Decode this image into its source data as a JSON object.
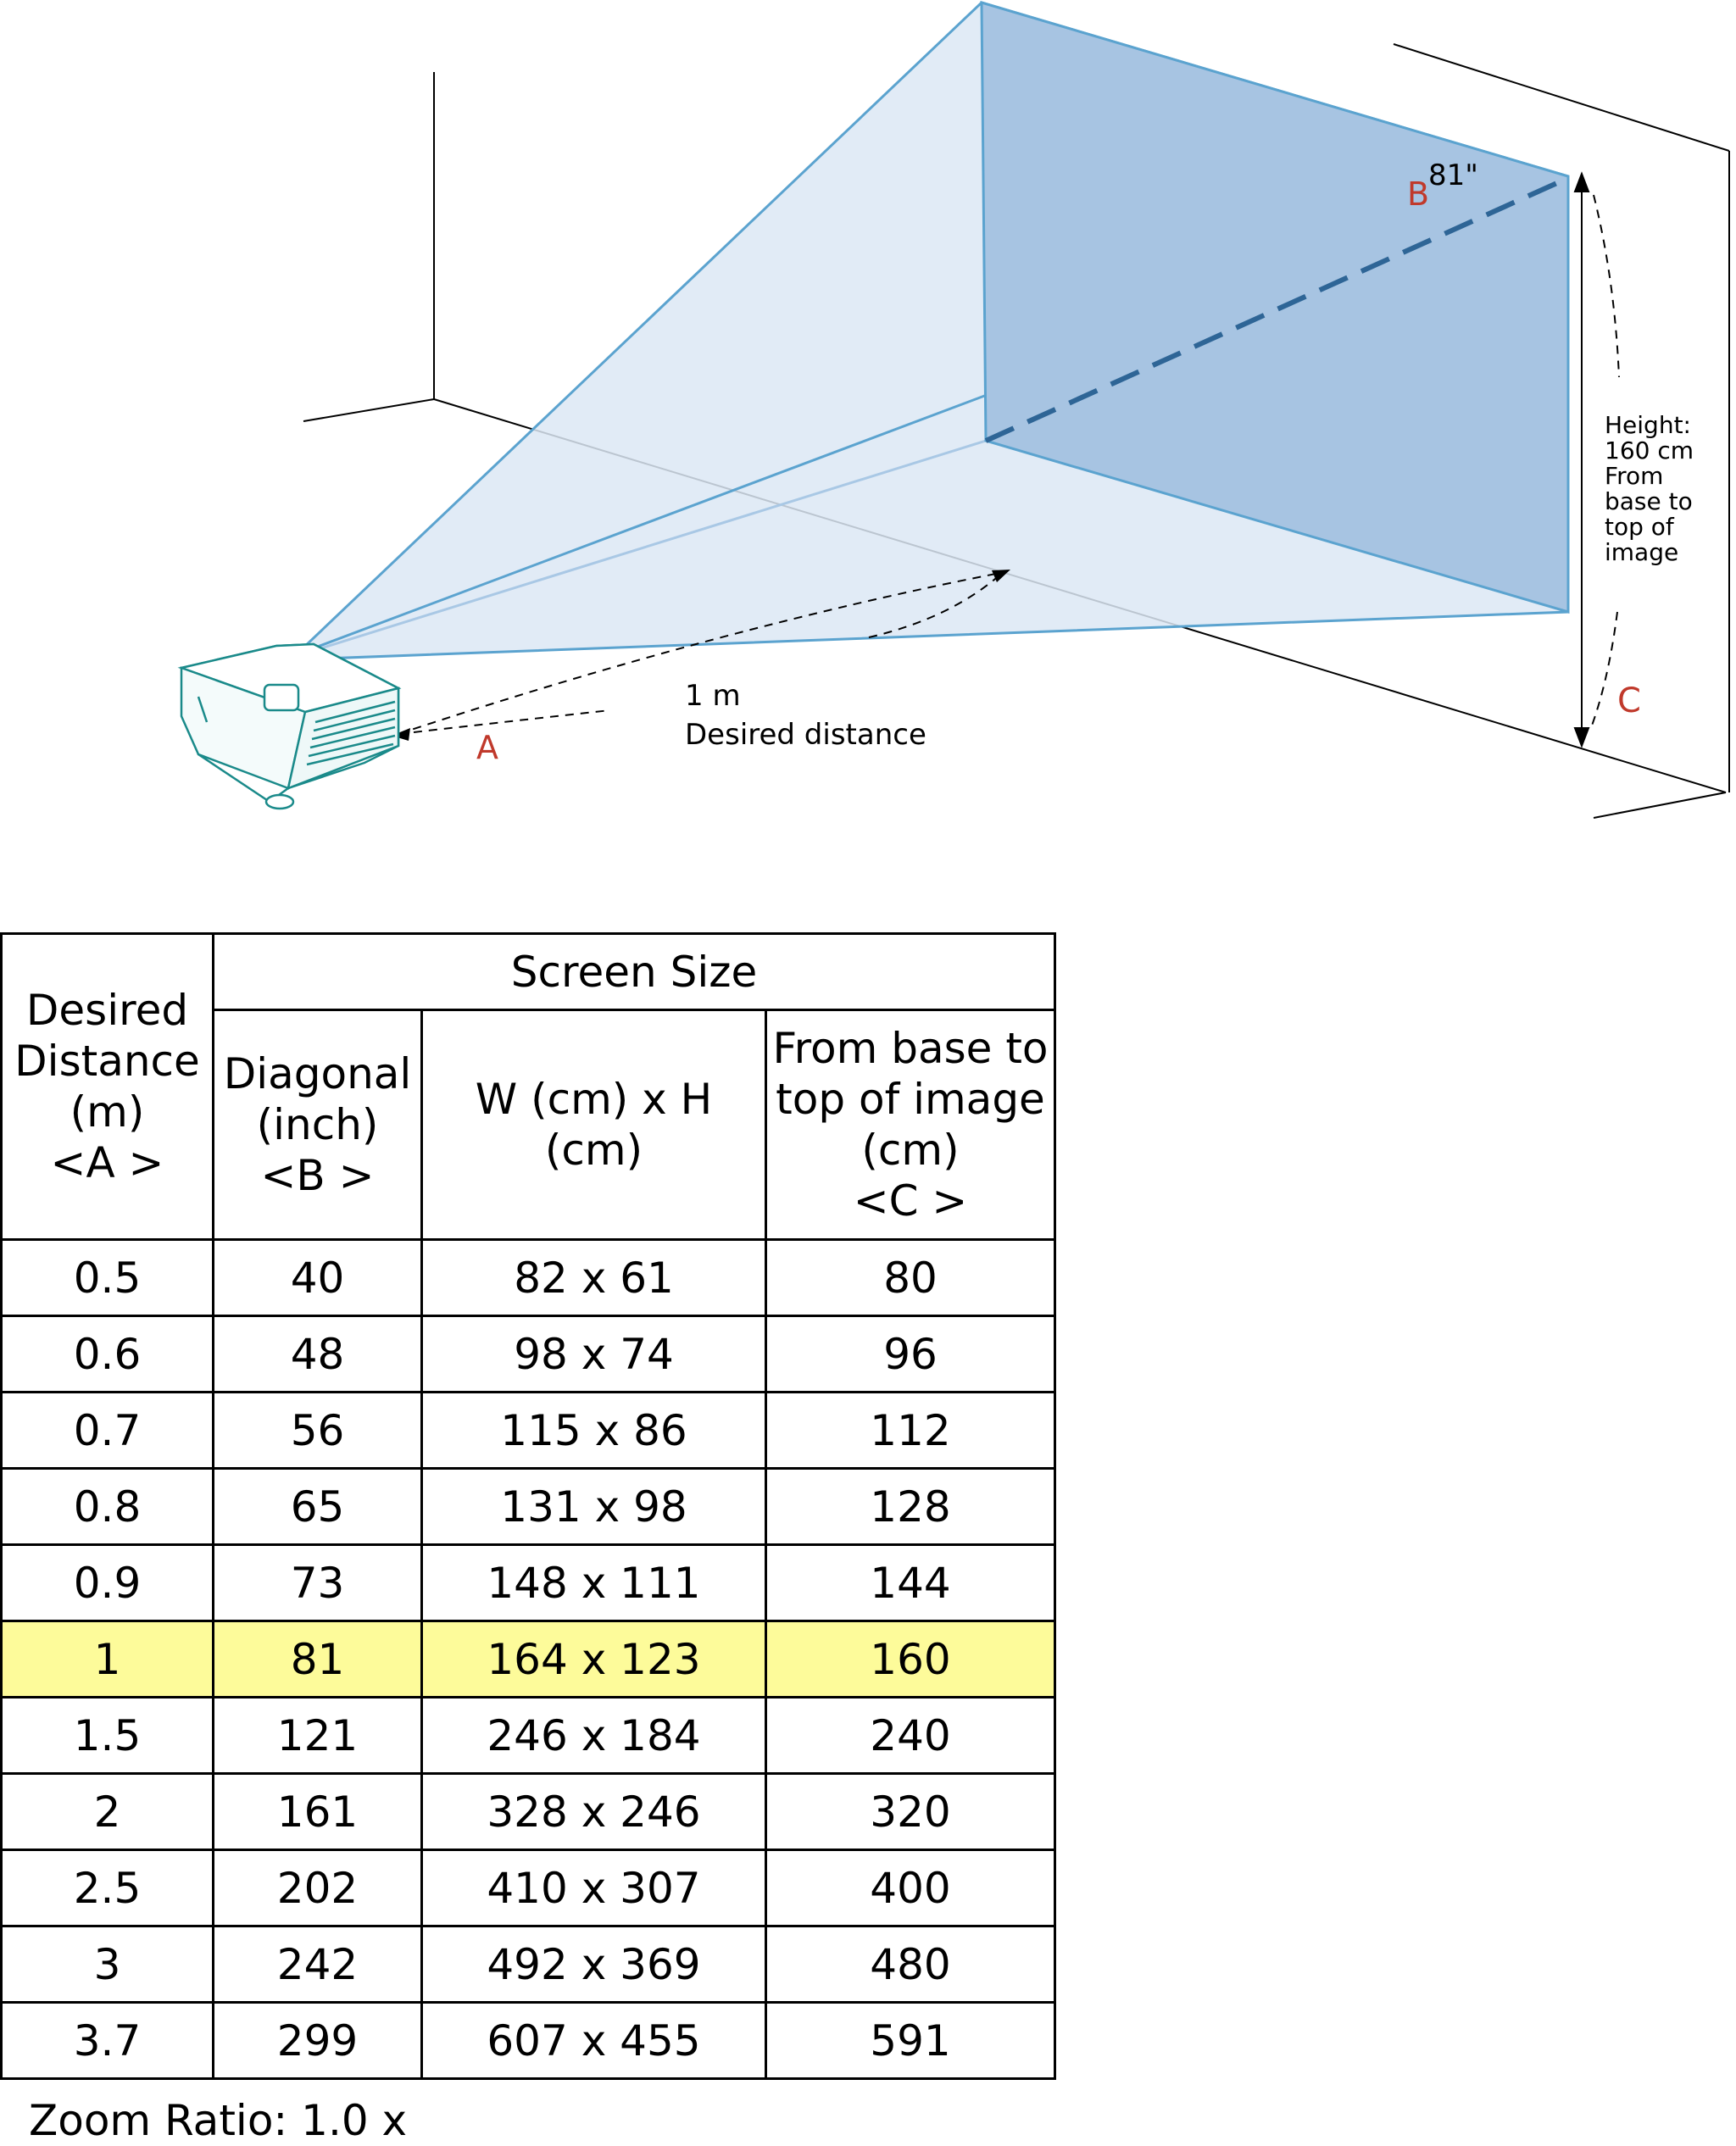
{
  "diagram": {
    "label_diagonal_value": "81\"",
    "label_b": "B",
    "label_a": "A",
    "label_c": "C",
    "distance_value": "1 m",
    "distance_caption": "Desired distance",
    "height_note": [
      "Height:",
      "160 cm",
      "From",
      "base to",
      "top of",
      "image"
    ],
    "accent_color": "#5ba3cf",
    "label_color": "#c0392b"
  },
  "table": {
    "header_a": [
      "Desired",
      "Distance",
      "(m)",
      "<A >"
    ],
    "header_screen_size": "Screen Size",
    "header_b": [
      "Diagonal",
      "(inch)",
      "<B >"
    ],
    "header_wh": "W (cm) x H (cm)",
    "header_c": [
      "From base to",
      "top of image",
      "(cm)",
      "<C >"
    ],
    "rows": [
      {
        "a": "0.5",
        "b": "40",
        "wh": "82 x 61",
        "c": "80"
      },
      {
        "a": "0.6",
        "b": "48",
        "wh": "98 x 74",
        "c": "96"
      },
      {
        "a": "0.7",
        "b": "56",
        "wh": "115 x 86",
        "c": "112"
      },
      {
        "a": "0.8",
        "b": "65",
        "wh": "131 x 98",
        "c": "128"
      },
      {
        "a": "0.9",
        "b": "73",
        "wh": "148 x 111",
        "c": "144"
      },
      {
        "a": "1",
        "b": "81",
        "wh": "164 x 123",
        "c": "160"
      },
      {
        "a": "1.5",
        "b": "121",
        "wh": "246 x 184",
        "c": "240"
      },
      {
        "a": "2",
        "b": "161",
        "wh": "328 x 246",
        "c": "320"
      },
      {
        "a": "2.5",
        "b": "202",
        "wh": "410 x 307",
        "c": "400"
      },
      {
        "a": "3",
        "b": "242",
        "wh": "492 x 369",
        "c": "480"
      },
      {
        "a": "3.7",
        "b": "299",
        "wh": "607 x 455",
        "c": "591"
      }
    ],
    "highlighted_row": 5,
    "highlight_color": "#fdfb9a"
  },
  "zoom_ratio": "Zoom Ratio: 1.0 x"
}
